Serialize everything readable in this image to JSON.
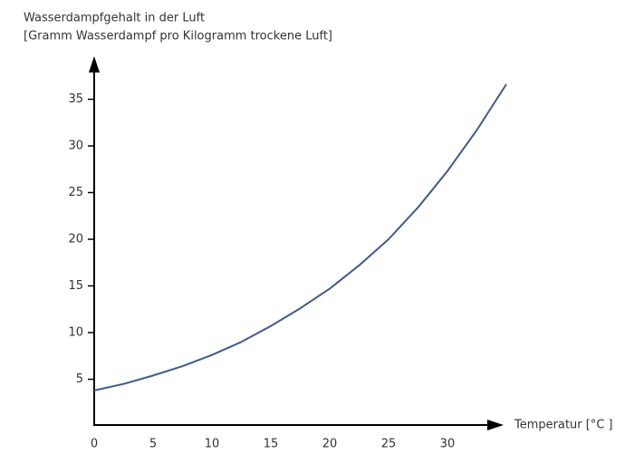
{
  "chart_data": {
    "type": "line",
    "title": "Wasserdampfgehalt in der Luft",
    "subtitle": "[Gramm Wasserdampf pro Kilogramm trockene Luft]",
    "x_label": "Temperatur [°C ]",
    "x": [
      0,
      2.5,
      5,
      7.5,
      10,
      12.5,
      15,
      17.5,
      20,
      22.5,
      25,
      27.5,
      30,
      32.5,
      35
    ],
    "series": [
      {
        "color": "#3f5b8c",
        "values": [
          3.8,
          4.5,
          5.4,
          6.4,
          7.6,
          9.0,
          10.7,
          12.6,
          14.7,
          17.2,
          20.0,
          23.4,
          27.3,
          31.7,
          36.6
        ]
      }
    ],
    "xlim": [
      0,
      35
    ],
    "xticks": [
      0,
      5,
      10,
      15,
      20,
      25,
      30
    ],
    "ylim": [
      0,
      40
    ],
    "yticks": [
      5,
      10,
      15,
      20,
      25,
      30,
      35
    ]
  }
}
